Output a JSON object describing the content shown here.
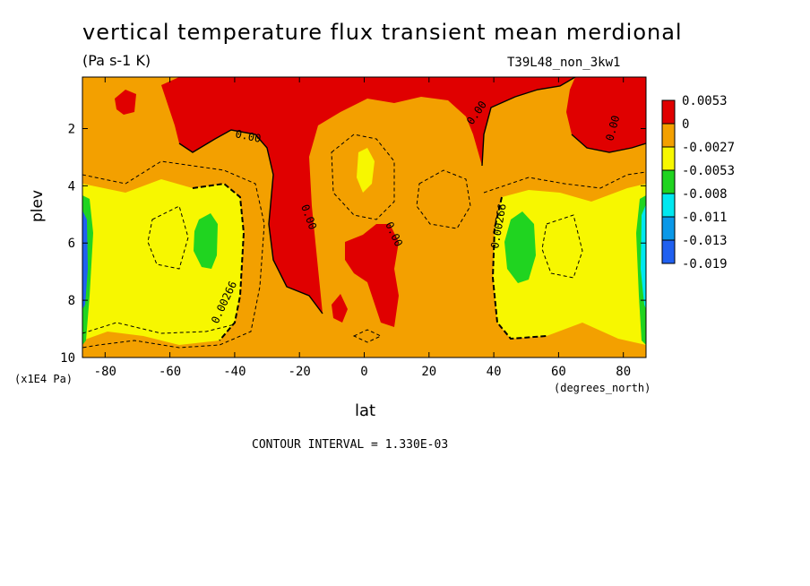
{
  "chart_data": {
    "type": "heatmap",
    "title": "vertical temperature flux transient mean merdional",
    "units_label": "(Pa s-1 K)",
    "dataset_label": "T39L48_non_3kw1",
    "xlabel": "lat",
    "x_units": "(degrees_north)",
    "ylabel": "plev",
    "y_units": "(x1E4 Pa)",
    "x_ticks": [
      "-80",
      "-60",
      "-40",
      "-20",
      "0",
      "20",
      "40",
      "60",
      "80"
    ],
    "x_tick_values": [
      -80,
      -60,
      -40,
      -20,
      0,
      20,
      40,
      60,
      80
    ],
    "y_ticks": [
      "2",
      "4",
      "6",
      "8",
      "10"
    ],
    "y_tick_values": [
      2,
      4,
      6,
      8,
      10
    ],
    "xlim": [
      -87,
      87
    ],
    "ylim": [
      10,
      0.2
    ],
    "contour_interval": "CONTOUR INTERVAL = 1.330E-03",
    "contour_labels": [
      "0.00",
      "0.00",
      "0.00",
      "0.00",
      "0.00266",
      "0.00266"
    ],
    "colorbar": {
      "levels": [
        "0.0053",
        "0",
        "-0.0027",
        "-0.0053",
        "-0.008",
        "-0.011",
        "-0.013",
        "-0.019"
      ],
      "colors": [
        "#e00000",
        "#f3a000",
        "#f7f700",
        "#20d420",
        "#00e8f0",
        "#0a98e8",
        "#2060f0"
      ]
    },
    "background_fill": "#f3a000"
  }
}
